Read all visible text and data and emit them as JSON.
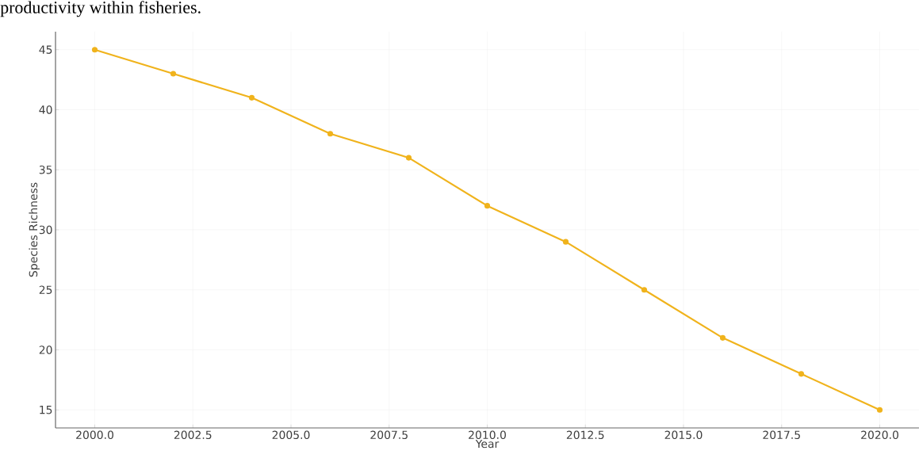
{
  "chart_data": {
    "type": "line",
    "xlabel": "Year",
    "ylabel": "Species Richness",
    "annotations": [
      "productivity within fisheries."
    ],
    "x": [
      2000,
      2002,
      2004,
      2006,
      2008,
      2010,
      2012,
      2014,
      2016,
      2018,
      2020
    ],
    "series": [
      {
        "color": "#f0b31c",
        "values": [
          45,
          43,
          41,
          38,
          36,
          32,
          29,
          25,
          21,
          18,
          15
        ]
      }
    ],
    "xlim": [
      1999,
      2021
    ],
    "ylim": [
      13.5,
      46.5
    ],
    "xticks": [
      {
        "value": 2000,
        "label": "2000.0"
      },
      {
        "value": 2002.5,
        "label": "2002.5"
      },
      {
        "value": 2005,
        "label": "2005.0"
      },
      {
        "value": 2007.5,
        "label": "2007.5"
      },
      {
        "value": 2010,
        "label": "2010.0"
      },
      {
        "value": 2012.5,
        "label": "2012.5"
      },
      {
        "value": 2015,
        "label": "2015.0"
      },
      {
        "value": 2017.5,
        "label": "2017.5"
      },
      {
        "value": 2020,
        "label": "2020.0"
      }
    ],
    "yticks": [
      15,
      20,
      25,
      30,
      35,
      40,
      45
    ],
    "grid": true,
    "marker": "circle",
    "line_style": "solid"
  }
}
